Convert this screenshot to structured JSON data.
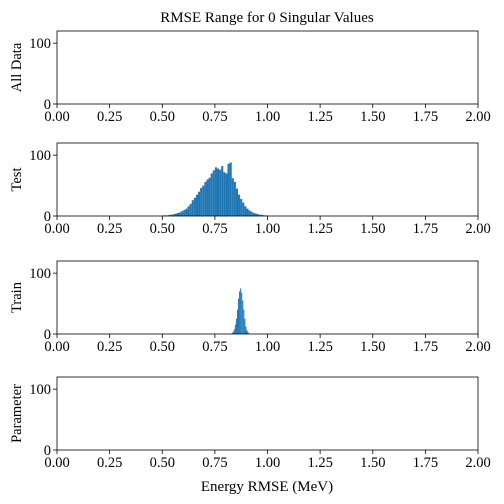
{
  "chart_data": {
    "type": "bar",
    "title": "RMSE Range for 0 Singular Values",
    "xlabel": "Energy RMSE (MeV)",
    "xlim": [
      0,
      2
    ],
    "ylim": [
      0,
      120
    ],
    "x_ticks": [
      "0.00",
      "0.25",
      "0.50",
      "0.75",
      "1.00",
      "1.25",
      "1.50",
      "1.75",
      "2.00"
    ],
    "y_ticks": [
      {
        "value": 0,
        "label": "0"
      },
      {
        "value": 100,
        "label": "100"
      }
    ],
    "bar_color": "#1f77b4",
    "bin_width": 0.01,
    "subplots": [
      {
        "ylabel": "All Data",
        "bin_start": [],
        "values": []
      },
      {
        "ylabel": "Test",
        "bin_start": [
          0.5,
          0.51,
          0.52,
          0.53,
          0.54,
          0.55,
          0.56,
          0.57,
          0.58,
          0.59,
          0.6,
          0.61,
          0.62,
          0.63,
          0.64,
          0.65,
          0.66,
          0.67,
          0.68,
          0.69,
          0.7,
          0.71,
          0.72,
          0.73,
          0.74,
          0.75,
          0.76,
          0.77,
          0.78,
          0.79,
          0.8,
          0.81,
          0.82,
          0.83,
          0.84,
          0.85,
          0.86,
          0.87,
          0.88,
          0.89,
          0.9,
          0.91,
          0.92,
          0.93,
          0.94,
          0.95,
          0.96,
          0.97,
          0.98,
          0.99
        ],
        "values": [
          1,
          1,
          1,
          2,
          2,
          3,
          4,
          5,
          6,
          8,
          10,
          12,
          16,
          20,
          26,
          30,
          35,
          40,
          46,
          50,
          56,
          60,
          63,
          70,
          75,
          80,
          78,
          76,
          82,
          72,
          70,
          86,
          88,
          62,
          56,
          45,
          35,
          28,
          22,
          16,
          12,
          9,
          7,
          5,
          4,
          3,
          2,
          2,
          1,
          1
        ]
      },
      {
        "ylabel": "Train",
        "bin_start": [
          0.83,
          0.835,
          0.84,
          0.845,
          0.85,
          0.855,
          0.86,
          0.865,
          0.87,
          0.875,
          0.88,
          0.885,
          0.89,
          0.895,
          0.9,
          0.905,
          0.91
        ],
        "values": [
          2,
          4,
          8,
          15,
          25,
          40,
          58,
          70,
          75,
          68,
          55,
          40,
          25,
          12,
          6,
          3,
          1
        ]
      },
      {
        "ylabel": "Parameter",
        "bin_start": [],
        "values": []
      }
    ]
  }
}
